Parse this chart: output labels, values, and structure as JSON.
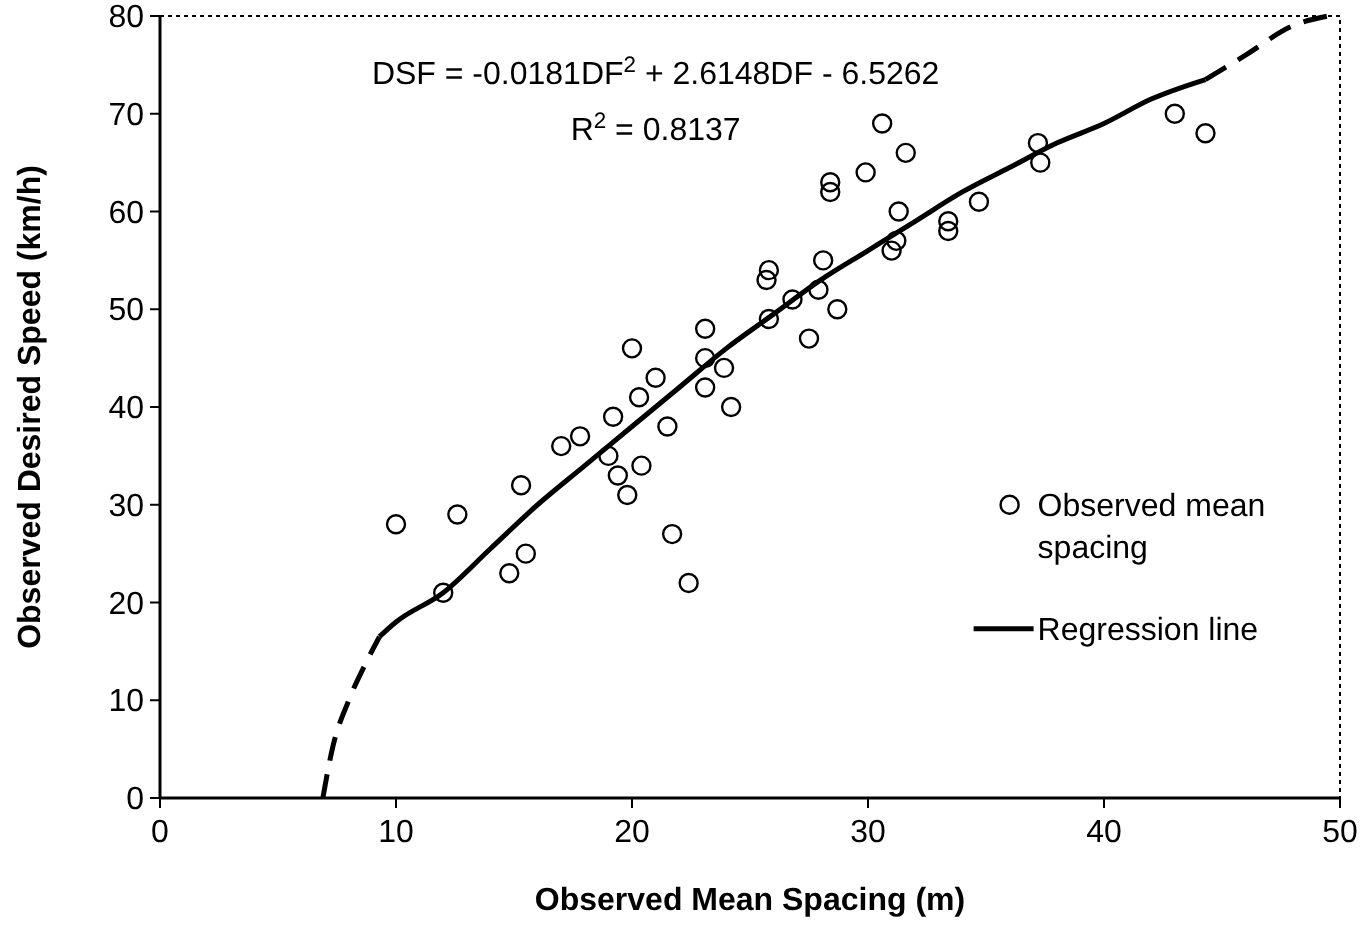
{
  "chart_data": {
    "type": "scatter",
    "xlabel": "Observed Mean Spacing (m)",
    "ylabel": "Observed Desired Speed (km/h)",
    "annotations": [
      "DSF = -0.0181DF$^{2}$ + 2.6148DF - 6.5262",
      "R$^{2}$ = 0.8137"
    ],
    "xlim": [
      0,
      50
    ],
    "ylim": [
      0,
      80
    ],
    "xticks": [
      0,
      10,
      20,
      30,
      40,
      50
    ],
    "yticks": [
      0,
      10,
      20,
      30,
      40,
      50,
      60,
      70,
      80
    ],
    "grid": false,
    "legend": "right",
    "series": [
      {
        "name": "Observed mean spacing",
        "marker": "circle",
        "color": "#000000",
        "x": [
          10,
          12,
          12.6,
          14.8,
          15.3,
          15.5,
          17,
          17.8,
          19,
          19.2,
          19.4,
          19.8,
          20,
          20.3,
          20.4,
          21,
          21.5,
          21.7,
          22.4,
          23.1,
          23.1,
          23.1,
          23.9,
          24.2,
          25.7,
          25.8,
          25.8,
          26.8,
          27.5,
          27.9,
          28.1,
          28.4,
          28.4,
          28.7,
          29.9,
          30.6,
          31,
          31.2,
          31.3,
          31.6,
          33.4,
          33.4,
          34.7,
          37.2,
          37.3,
          43,
          44.3
        ],
        "values": [
          28,
          21,
          29,
          23,
          32,
          25,
          36,
          37,
          35,
          39,
          33,
          31,
          46,
          41,
          34,
          43,
          38,
          27,
          22,
          42,
          45,
          48,
          44,
          40,
          53,
          54,
          49,
          51,
          47,
          52,
          55,
          62,
          63,
          50,
          64,
          69,
          56,
          57,
          60,
          66,
          58,
          59,
          61,
          67,
          65,
          70,
          68
        ]
      },
      {
        "name": "Regression line",
        "type": "line",
        "line_style": "solid",
        "color": "#000000",
        "x": [
          9.3,
          10,
          12,
          14,
          16,
          18,
          20,
          22,
          24,
          26,
          28,
          30,
          32,
          34,
          36,
          38,
          40,
          42,
          44.3
        ],
        "values": [
          16.5,
          18,
          21,
          25.5,
          30,
          34,
          38,
          42,
          46,
          49.5,
          53,
          56,
          59,
          62,
          64.5,
          67,
          69,
          71.5,
          73.5
        ]
      },
      {
        "type": "line",
        "line_style": "dashed",
        "color": "#000000",
        "x": [
          6.9,
          7.3,
          8,
          8.7,
          9.3
        ],
        "values": [
          0,
          5,
          10,
          13.7,
          16.5
        ]
      },
      {
        "type": "line",
        "line_style": "dashed",
        "color": "#000000",
        "x": [
          44.3,
          46,
          48,
          49.5
        ],
        "values": [
          73.5,
          76,
          79,
          80
        ]
      }
    ]
  }
}
